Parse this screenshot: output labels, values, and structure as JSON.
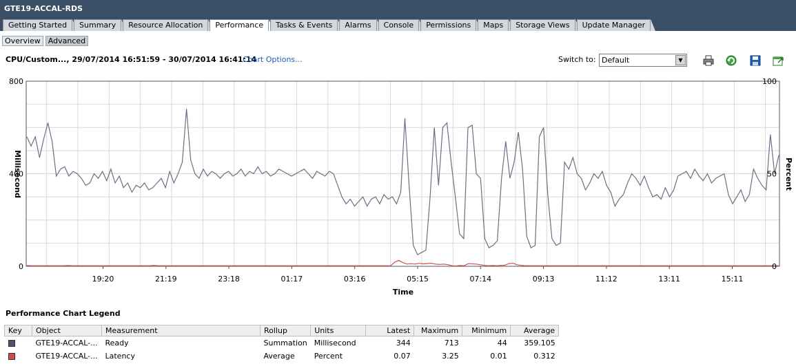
{
  "window": {
    "title": "GTE19-ACCAL-RDS",
    "tabs": [
      "Getting Started",
      "Summary",
      "Resource Allocation",
      "Performance",
      "Tasks & Events",
      "Alarms",
      "Console",
      "Permissions",
      "Maps",
      "Storage Views",
      "Update Manager"
    ],
    "active_tab": "Performance"
  },
  "subtabs": [
    "Overview",
    "Advanced"
  ],
  "active_subtab": "Advanced",
  "chart_header": {
    "title": "CPU/Custom..., 29/07/2014 16:51:59 - 30/07/2014 16:41:14",
    "options_link": "Chart Options...",
    "switch_label": "Switch to:",
    "switch_value": "Default"
  },
  "toolbar_icons": [
    "printer-icon",
    "refresh-icon",
    "save-icon",
    "export-icon"
  ],
  "chart_data": {
    "type": "line",
    "xlabel": "Time",
    "ylabel_left": "Millisecond",
    "ylabel_right": "Percent",
    "ylim_left": [
      0,
      800
    ],
    "ylim_right": [
      0,
      100
    ],
    "yticks_left": [
      "0",
      "400",
      "800"
    ],
    "yticks_right": [
      "0",
      "50",
      "100"
    ],
    "x_ticks": [
      "19:20",
      "21:19",
      "23:18",
      "01:17",
      "03:16",
      "05:15",
      "07:14",
      "09:13",
      "11:12",
      "13:11",
      "15:11"
    ],
    "grid": true,
    "series": [
      {
        "name": "Ready",
        "axis": "left",
        "color": "#6b6f85",
        "values": [
          560,
          520,
          560,
          470,
          550,
          620,
          540,
          390,
          420,
          430,
          390,
          410,
          400,
          380,
          350,
          360,
          400,
          380,
          410,
          370,
          420,
          360,
          390,
          340,
          360,
          320,
          350,
          340,
          360,
          330,
          340,
          360,
          380,
          340,
          410,
          360,
          400,
          450,
          680,
          460,
          400,
          380,
          420,
          390,
          410,
          400,
          380,
          400,
          410,
          390,
          400,
          420,
          390,
          410,
          400,
          430,
          400,
          410,
          390,
          400,
          420,
          410,
          400,
          390,
          400,
          410,
          420,
          400,
          380,
          410,
          400,
          390,
          410,
          400,
          350,
          300,
          270,
          290,
          260,
          280,
          300,
          260,
          290,
          300,
          270,
          310,
          290,
          300,
          270,
          320,
          640,
          350,
          90,
          50,
          60,
          70,
          300,
          600,
          350,
          600,
          620,
          450,
          300,
          140,
          120,
          600,
          610,
          400,
          380,
          120,
          80,
          90,
          110,
          380,
          540,
          380,
          450,
          580,
          420,
          130,
          80,
          90,
          560,
          600,
          310,
          120,
          90,
          100,
          450,
          420,
          470,
          400,
          380,
          330,
          360,
          400,
          380,
          410,
          350,
          320,
          260,
          290,
          310,
          360,
          400,
          380,
          350,
          390,
          340,
          300,
          310,
          290,
          340,
          300,
          330,
          390,
          400,
          410,
          380,
          420,
          390,
          370,
          400,
          360,
          380,
          390,
          400,
          310,
          270,
          300,
          330,
          280,
          310,
          420,
          380,
          350,
          330,
          570,
          400,
          480
        ]
      },
      {
        "name": "Latency",
        "axis": "right",
        "color": "#c8504d",
        "values": [
          0.4,
          0.3,
          0.3,
          0.3,
          0.3,
          0.3,
          0.3,
          0.3,
          0.3,
          0.3,
          0.4,
          0.3,
          0.3,
          0.3,
          0.3,
          0.3,
          0.3,
          0.3,
          0.3,
          0.3,
          0.3,
          0.3,
          0.3,
          0.3,
          0.3,
          0.3,
          0.3,
          0.3,
          0.3,
          0.3,
          0.3,
          0.5,
          0.3,
          0.3,
          0.3,
          0.3,
          0.3,
          0.3,
          0.3,
          0.3,
          0.3,
          0.3,
          0.3,
          0.3,
          0.3,
          0.3,
          0.3,
          0.3,
          0.3,
          0.3,
          0.3,
          0.3,
          0.3,
          0.3,
          0.3,
          0.3,
          0.3,
          0.3,
          0.3,
          0.3,
          0.3,
          0.3,
          0.3,
          0.3,
          0.3,
          0.3,
          0.3,
          0.3,
          0.3,
          0.3,
          0.3,
          0.3,
          0.3,
          0.3,
          0.3,
          0.3,
          0.3,
          0.3,
          0.3,
          0.3,
          0.3,
          0.3,
          0.3,
          0.3,
          0.3,
          0.3,
          0.3,
          0.3,
          0.3,
          0.3,
          2.2,
          3.25,
          2.0,
          1.2,
          1.4,
          1.2,
          1.6,
          1.3,
          1.5,
          1.6,
          1.2,
          1.0,
          1.2,
          0.9,
          0.3,
          0.2,
          0.4,
          0.3,
          1.4,
          1.3,
          1.2,
          0.8,
          0.5,
          0.3,
          0.4,
          0.3,
          0.5,
          0.6,
          1.5,
          1.6,
          0.8,
          0.5,
          0.3,
          0.3,
          0.3,
          0.3,
          0.3,
          0.3,
          0.3,
          0.3,
          0.3,
          0.3,
          0.3,
          0.3,
          0.3,
          0.3,
          0.3,
          0.3,
          0.3,
          0.3,
          0.3,
          0.3,
          0.3,
          0.3,
          0.3,
          0.3,
          0.3,
          0.3,
          0.3,
          0.3,
          0.3,
          0.3,
          0.3,
          0.3,
          0.3,
          0.3,
          0.3,
          0.3,
          0.3,
          0.3,
          0.3,
          0.3,
          0.3,
          0.3,
          0.3,
          0.3,
          0.3,
          0.3,
          0.3,
          0.3,
          0.3,
          0.3,
          0.3,
          0.3,
          0.3,
          0.3,
          0.3,
          0.3,
          0.3,
          0.3,
          0.3,
          0.3,
          0.3,
          0.3,
          0.3
        ]
      }
    ]
  },
  "legend": {
    "title": "Performance Chart Legend",
    "columns": [
      "Key",
      "Object",
      "Measurement",
      "Rollup",
      "Units",
      "Latest",
      "Maximum",
      "Minimum",
      "Average"
    ],
    "rows": [
      {
        "key_color": "#4c5470",
        "object": "GTE19-ACCAL-...",
        "measurement": "Ready",
        "rollup": "Summation",
        "units": "Millisecond",
        "latest": "344",
        "maximum": "713",
        "minimum": "44",
        "average": "359.105"
      },
      {
        "key_color": "#c8504d",
        "object": "GTE19-ACCAL-...",
        "measurement": "Latency",
        "rollup": "Average",
        "units": "Percent",
        "latest": "0.07",
        "maximum": "3.25",
        "minimum": "0.01",
        "average": "0.312"
      }
    ]
  }
}
